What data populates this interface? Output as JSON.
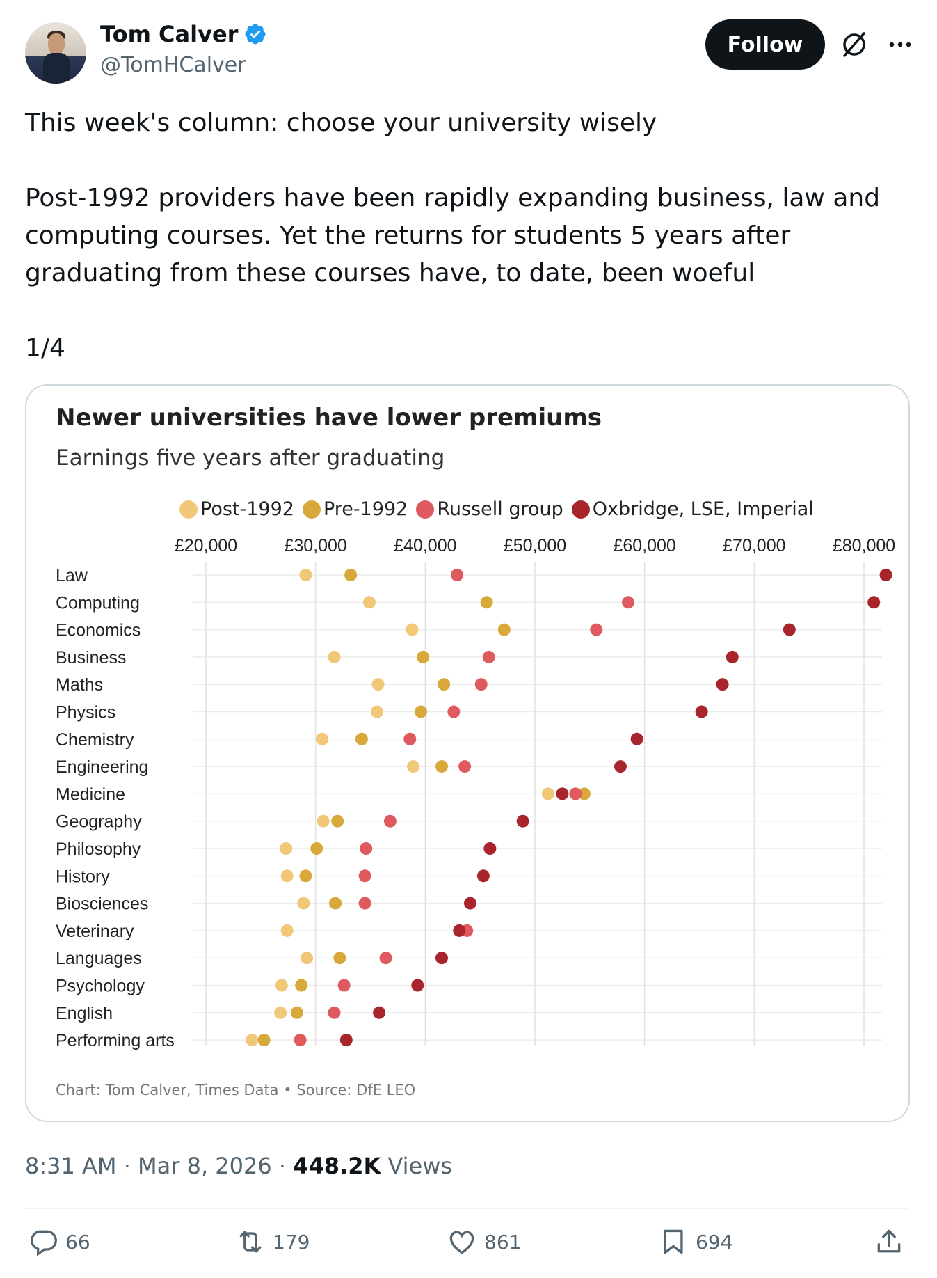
{
  "author": {
    "name": "Tom Calver",
    "handle": "@TomHCalver",
    "verified": true
  },
  "follow_label": "Follow",
  "tweet": {
    "line1": "This week's column: choose your university wisely",
    "paragraph": "Post-1992 providers have been rapidly expanding business, law and computing courses. Yet the returns for students 5 years after graduating from these courses have, to date, been woeful",
    "thread": "1/4"
  },
  "colors": {
    "post1992": "#f0c878",
    "pre1992": "#d9a83a",
    "russell": "#de5a5e",
    "oxbridge": "#a8262b",
    "verified": "#1d9bf0"
  },
  "chart_data": {
    "type": "scatter",
    "title": "Newer universities have lower premiums",
    "subtitle": "Earnings five years after graduating",
    "footer": "Chart: Tom Calver, Times Data • Source: DfE LEO",
    "xlim": [
      20000,
      80000
    ],
    "x_ticks": [
      {
        "value": 20000,
        "label": "£20,000"
      },
      {
        "value": 30000,
        "label": "£30,000"
      },
      {
        "value": 40000,
        "label": "£40,000"
      },
      {
        "value": 50000,
        "label": "£50,000"
      },
      {
        "value": 60000,
        "label": "£60,000"
      },
      {
        "value": 70000,
        "label": "£70,000"
      },
      {
        "value": 80000,
        "label": "£80,000"
      }
    ],
    "categories": [
      "Law",
      "Computing",
      "Economics",
      "Business",
      "Maths",
      "Physics",
      "Chemistry",
      "Engineering",
      "Medicine",
      "Geography",
      "Philosophy",
      "History",
      "Biosciences",
      "Veterinary",
      "Languages",
      "Psychology",
      "English",
      "Performing arts"
    ],
    "series": [
      {
        "name": "Post-1992",
        "color_key": "post1992",
        "values": [
          29100,
          34900,
          38800,
          31700,
          35700,
          35600,
          30600,
          38900,
          51200,
          30700,
          27300,
          27400,
          28900,
          27400,
          29200,
          26900,
          26800,
          24200
        ]
      },
      {
        "name": "Pre-1992",
        "color_key": "pre1992",
        "values": [
          33200,
          45600,
          47200,
          39800,
          41700,
          39600,
          34200,
          41500,
          54500,
          32000,
          30100,
          29100,
          31800,
          null,
          32200,
          28700,
          28300,
          25300
        ]
      },
      {
        "name": "Russell group",
        "color_key": "russell",
        "values": [
          42900,
          58500,
          55600,
          45800,
          45100,
          42600,
          38600,
          43600,
          53700,
          36800,
          34600,
          34500,
          34500,
          43800,
          36400,
          32600,
          31700,
          28600
        ]
      },
      {
        "name": "Oxbridge, LSE, Imperial",
        "color_key": "oxbridge",
        "values": [
          82000,
          80900,
          73200,
          68000,
          67100,
          65200,
          59300,
          57800,
          52500,
          48900,
          45900,
          45300,
          44100,
          43100,
          41500,
          39300,
          35800,
          32800
        ]
      }
    ]
  },
  "meta": {
    "time": "8:31 AM",
    "date": "Mar 8, 2026",
    "views_count": "448.2K",
    "views_label": "Views"
  },
  "actions": {
    "replies": "66",
    "reposts": "179",
    "likes": "861",
    "bookmarks": "694"
  }
}
